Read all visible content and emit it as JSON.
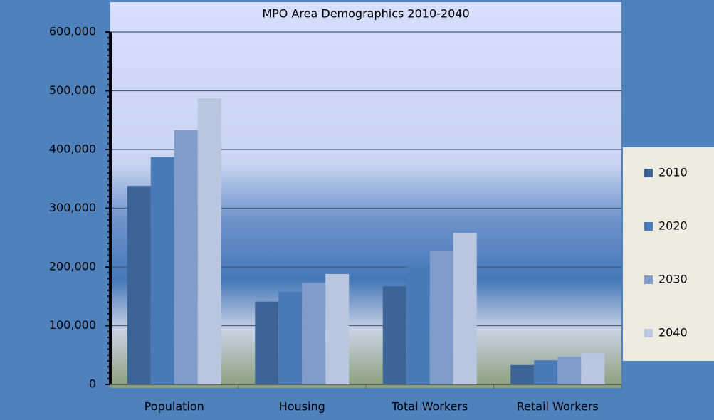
{
  "chart_data": {
    "type": "bar",
    "title": "MPO Area Demographics 2010-2040",
    "categories": [
      "Population",
      "Housing",
      "Total Workers",
      "Retail Workers"
    ],
    "series": [
      {
        "name": "2010",
        "color": "#3d6496",
        "values": [
          338000,
          141000,
          167000,
          33000
        ]
      },
      {
        "name": "2020",
        "color": "#4a7ab8",
        "values": [
          387000,
          158000,
          204000,
          41000
        ]
      },
      {
        "name": "2030",
        "color": "#7f9ccb",
        "values": [
          433000,
          173000,
          228000,
          47000
        ]
      },
      {
        "name": "2040",
        "color": "#b8c6e0",
        "values": [
          487000,
          188000,
          258000,
          53000
        ]
      }
    ],
    "ylim": [
      0,
      600000
    ],
    "yticks": [
      0,
      {
        "value": 100000,
        "label": "100,000"
      },
      {
        "value": 200000,
        "label": "200,000"
      },
      {
        "value": 300000,
        "label": "300,000"
      },
      {
        "value": 400000,
        "label": "400,000"
      },
      {
        "value": 500000,
        "label": "500,000"
      },
      {
        "value": 600000,
        "label": "600,000"
      }
    ],
    "grid": true,
    "legend": "right"
  }
}
